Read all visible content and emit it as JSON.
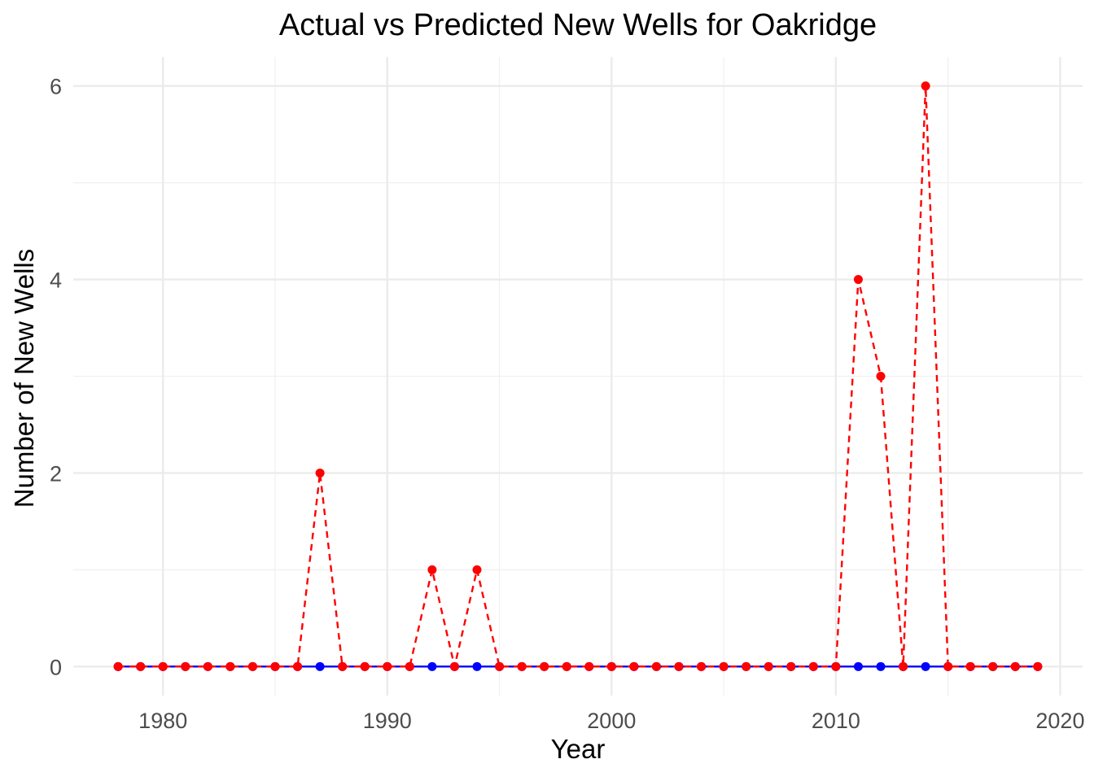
{
  "chart_data": {
    "type": "line",
    "title": "Actual vs Predicted New Wells for Oakridge",
    "xlabel": "Year",
    "ylabel": "Number of New Wells",
    "xlim": [
      1976.0,
      2021.0
    ],
    "ylim": [
      -0.3,
      6.3
    ],
    "x_ticks": [
      1980,
      1990,
      2000,
      2010,
      2020
    ],
    "y_ticks": [
      0,
      2,
      4,
      6
    ],
    "y_minor_ticks": [
      1,
      3,
      5
    ],
    "x_minor_ticks": [
      1985,
      1995,
      2005,
      2015
    ],
    "grid": true,
    "legend": "none",
    "x": [
      1978,
      1979,
      1980,
      1981,
      1982,
      1983,
      1984,
      1985,
      1986,
      1987,
      1988,
      1989,
      1990,
      1991,
      1992,
      1993,
      1994,
      1995,
      1996,
      1997,
      1998,
      1999,
      2000,
      2001,
      2002,
      2003,
      2004,
      2005,
      2006,
      2007,
      2008,
      2009,
      2010,
      2011,
      2012,
      2013,
      2014,
      2015,
      2016,
      2017,
      2018,
      2019
    ],
    "series": [
      {
        "color": "#0000ff",
        "line_style": "solid",
        "values": [
          0,
          0,
          0,
          0,
          0,
          0,
          0,
          0,
          0,
          0,
          0,
          0,
          0,
          0,
          0,
          0,
          0,
          0,
          0,
          0,
          0,
          0,
          0,
          0,
          0,
          0,
          0,
          0,
          0,
          0,
          0,
          0,
          0,
          0,
          0,
          0,
          0,
          0,
          0,
          0,
          0,
          0
        ]
      },
      {
        "color": "#ff0000",
        "line_style": "dashed",
        "values": [
          0,
          0,
          0,
          0,
          0,
          0,
          0,
          0,
          0,
          2,
          0,
          0,
          0,
          0,
          1,
          0,
          1,
          0,
          0,
          0,
          0,
          0,
          0,
          0,
          0,
          0,
          0,
          0,
          0,
          0,
          0,
          0,
          0,
          4,
          3,
          0,
          6,
          0,
          0,
          0,
          0,
          0
        ]
      }
    ]
  }
}
